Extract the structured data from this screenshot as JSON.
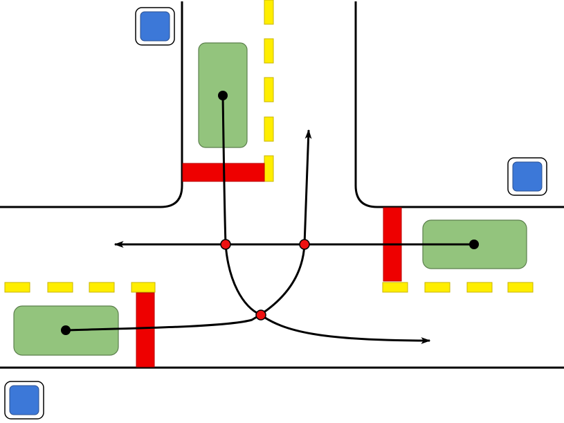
{
  "diagram": {
    "kind": "intersection-conflict-diagram",
    "colors": {
      "background": "#ffffff",
      "road_edge": "#000000",
      "lane_marking": "#ffee00",
      "lane_marking_outline": "#c8b400",
      "stop_line": "#ee0000",
      "stop_line_outline": "#b80000",
      "vehicle_fill": "#93c47d",
      "vehicle_outline": "#5b7f4c",
      "signal_fill": "#3c78d8",
      "path": "#000000",
      "conflict_point": "#ee1111"
    },
    "icons": {
      "traffic_signal": "traffic-signal-icon",
      "vehicle": "vehicle-icon",
      "conflict_point": "conflict-point-icon",
      "arrow_head": "arrow-head-icon"
    },
    "elements": {
      "vehicles": 3,
      "traffic_signals": 3,
      "stop_lines": 3,
      "conflict_points": 3,
      "movements": [
        "northbound-through-to-westbound-left",
        "northbound-through-to-eastbound-right",
        "westbound-through"
      ]
    }
  }
}
